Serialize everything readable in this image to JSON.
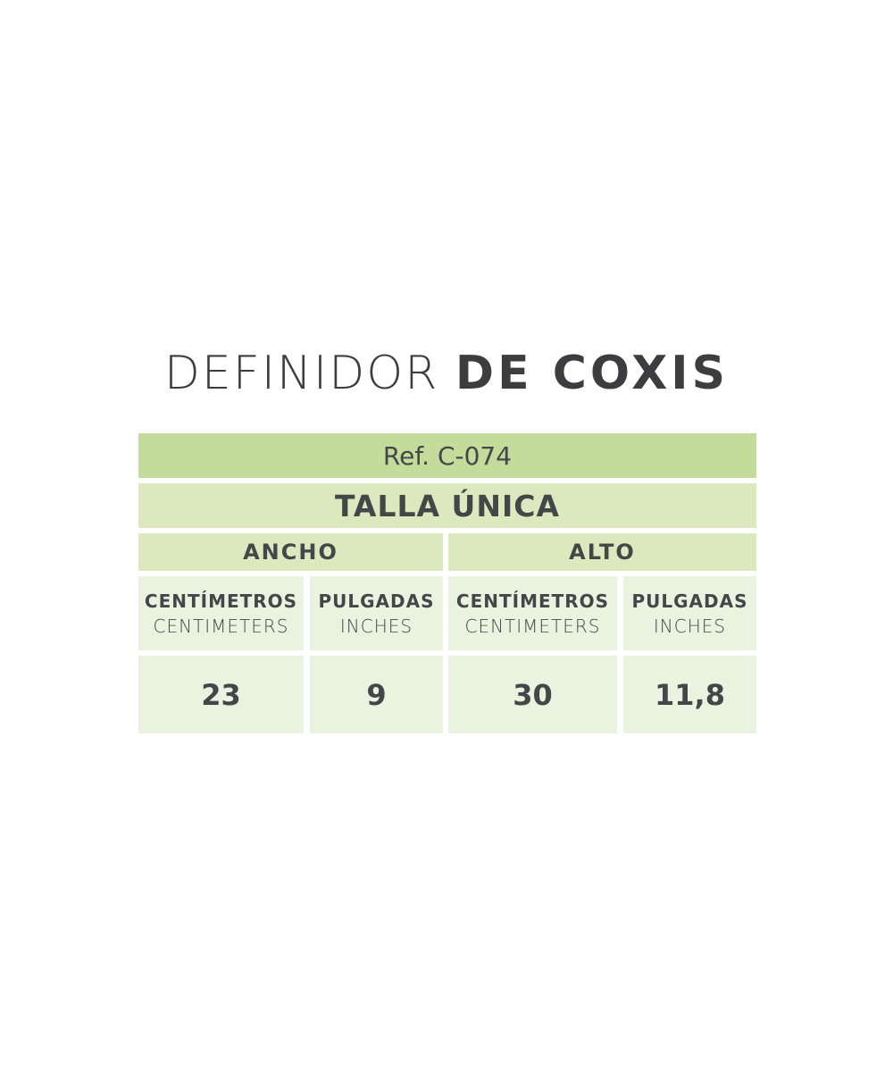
{
  "title": {
    "light": "DEFINIDOR ",
    "bold": "DE COXIS"
  },
  "table": {
    "ref": "Ref. C-074",
    "size": "TALLA ÚNICA",
    "groups": [
      "ANCHO",
      "ALTO"
    ],
    "units": [
      {
        "es": "CENTÍMETROS",
        "en": "CENTIMETERS"
      },
      {
        "es": "PULGADAS",
        "en": "INCHES"
      },
      {
        "es": "CENTÍMETROS",
        "en": "CENTIMETERS"
      },
      {
        "es": "PULGADAS",
        "en": "INCHES"
      }
    ],
    "values": [
      "23",
      "9",
      "30",
      "11,8"
    ]
  },
  "colors": {
    "ref_bg": "#c3dc9b",
    "header_bg": "#dce9bf",
    "cell_bg": "#eaf3df",
    "text": "#454648"
  }
}
